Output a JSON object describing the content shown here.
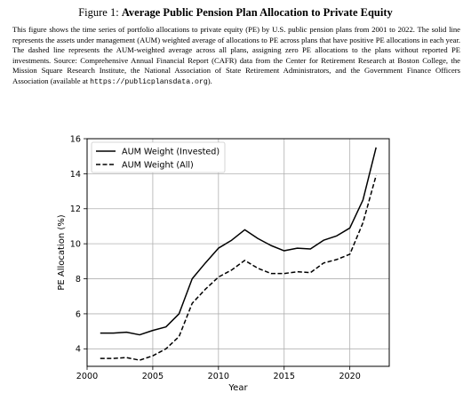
{
  "figure": {
    "label": "Figure 1:",
    "title": "Average Public Pension Plan Allocation to Private Equity"
  },
  "caption": {
    "text": "This figure shows the time series of portfolio allocations to private equity (PE) by U.S. public pension plans from 2001 to 2022. The solid line represents the assets under management (AUM) weighted average of allocations to PE across plans that have positive PE allocations in each year. The dashed line represents the AUM-weighted average across all plans, assigning zero PE allocations to the plans without reported PE investments. Source: Comprehensive Annual Financial Report (CAFR) data from the Center for Retirement Research at Boston College, the Mission Square Research Institute, the National Association of State Retirement Administrators, and the Government Finance Officers Association (available at ",
    "url": "https://publicplansdata.org",
    "suffix": ")."
  },
  "chart_data": {
    "type": "line",
    "title": "",
    "xlabel": "Year",
    "ylabel": "PE Allocation (%)",
    "xlim": [
      2000,
      2023
    ],
    "ylim": [
      3,
      16
    ],
    "xticks": [
      2000,
      2005,
      2010,
      2015,
      2020
    ],
    "yticks": [
      4,
      6,
      8,
      10,
      12,
      14,
      16
    ],
    "grid": true,
    "legend_position": "top-left",
    "x": [
      2001,
      2002,
      2003,
      2004,
      2005,
      2006,
      2007,
      2008,
      2009,
      2010,
      2011,
      2012,
      2013,
      2014,
      2015,
      2016,
      2017,
      2018,
      2019,
      2020,
      2021,
      2022
    ],
    "series": [
      {
        "name": "AUM Weight (Invested)",
        "style": "solid",
        "color": "#000000",
        "values": [
          4.9,
          4.9,
          4.95,
          4.8,
          5.05,
          5.25,
          6.0,
          8.0,
          8.9,
          9.75,
          10.2,
          10.8,
          10.3,
          9.9,
          9.6,
          9.75,
          9.7,
          10.2,
          10.45,
          10.9,
          12.5,
          15.5
        ]
      },
      {
        "name": "AUM Weight (All)",
        "style": "dashed",
        "color": "#000000",
        "values": [
          3.45,
          3.45,
          3.5,
          3.35,
          3.6,
          4.0,
          4.7,
          6.6,
          7.4,
          8.1,
          8.5,
          9.05,
          8.6,
          8.3,
          8.3,
          8.4,
          8.35,
          8.9,
          9.1,
          9.4,
          11.2,
          13.9
        ]
      }
    ]
  }
}
